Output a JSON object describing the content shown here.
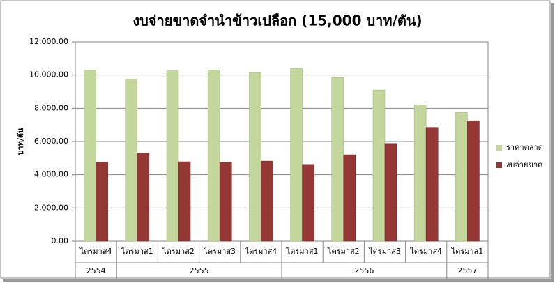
{
  "chart_data": {
    "type": "bar",
    "title": "งบจ่ายขาดจำนำข้าวเปลือก (15,000 บาท/ตัน)",
    "y_label": "บาท/ตัน",
    "categories": [
      "ไตรมาส4",
      "ไตรมาส1",
      "ไตรมาส2",
      "ไตรมาส3",
      "ไตรมาส4",
      "ไตรมาส1",
      "ไตรมาส2",
      "ไตรมาส3",
      "ไตรมาส4",
      "ไตรมาส1"
    ],
    "years": [
      "2554",
      "2555",
      "2555",
      "2555",
      "2555",
      "2556",
      "2556",
      "2556",
      "2556",
      "2557"
    ],
    "series": [
      {
        "name": "ราคาตลาด",
        "color": "#c3d69b",
        "values": [
          10300,
          9750,
          10250,
          10300,
          10150,
          10400,
          9850,
          9100,
          8200,
          7750
        ]
      },
      {
        "name": "งบจ่ายขาด",
        "color": "#953735",
        "values": [
          4750,
          5300,
          4780,
          4750,
          4820,
          4620,
          5200,
          5880,
          6850,
          7250
        ]
      }
    ],
    "ylim": [
      0,
      12000
    ],
    "yticks": [
      {
        "value": 0,
        "label": "0.00"
      },
      {
        "value": 2000,
        "label": "2,000.00"
      },
      {
        "value": 4000,
        "label": "4,000.00"
      },
      {
        "value": 6000,
        "label": "6,000.00"
      },
      {
        "value": 8000,
        "label": "8,000.00"
      },
      {
        "value": 10000,
        "label": "10,000.00"
      },
      {
        "value": 12000,
        "label": "12,000.00"
      }
    ],
    "grid": true,
    "legend": "right"
  }
}
